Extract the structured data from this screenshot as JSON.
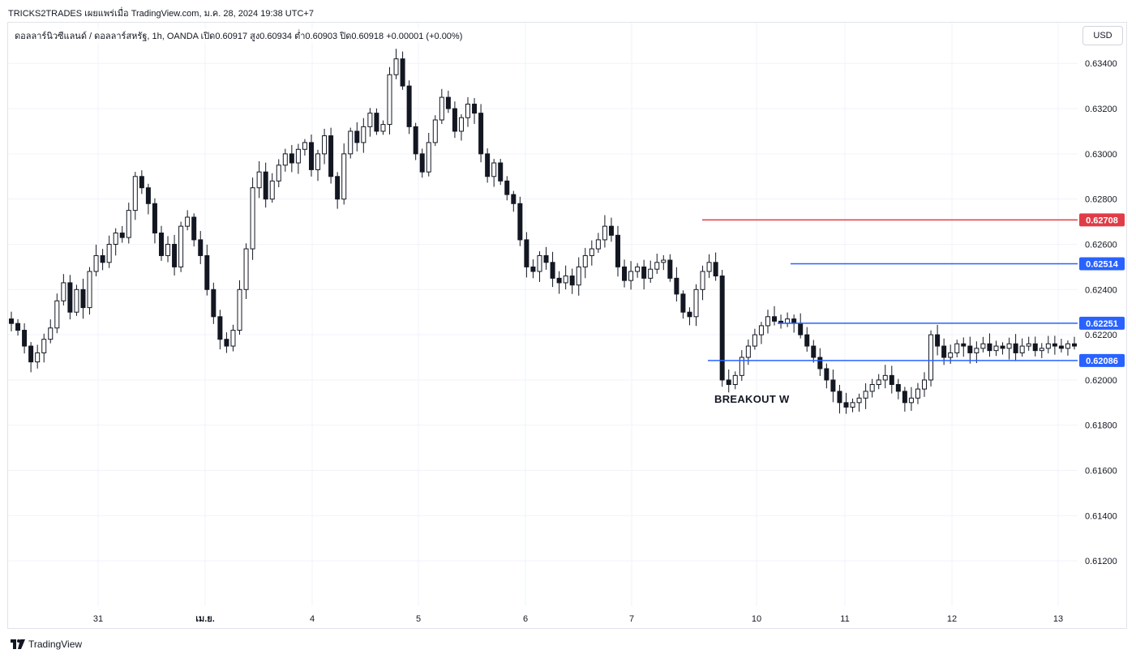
{
  "header": {
    "publish_line": "TRICKS2TRADES เผยแพร่เมื่อ TradingView.com, ม.ค. 28, 2024 19:38 UTC+7"
  },
  "legend": {
    "symbol": "ดอลลาร์นิวซีแลนด์ / ดอลลาร์สหรัฐ, 1h, OANDA",
    "open": "เปิด0.60917",
    "high": "สูง0.60934",
    "low": "ต่ำ0.60903",
    "close": "ปิด0.60918",
    "change": "+0.00001 (+0.00%)"
  },
  "currency_label": "USD",
  "annotation": "BREAKOUT W",
  "footer": {
    "brand": "TradingView",
    "logo_icon": "tradingview-logo-icon"
  },
  "colors": {
    "grid": "#f0f3fa",
    "candle": "#131722",
    "resistance_red": "#e03c47",
    "level_blue": "#2962ff",
    "axis_text": "#131722"
  },
  "chart_data": {
    "type": "candlestick",
    "ylim": [
      0.61,
      0.6358
    ],
    "yticks": [
      "0.61200",
      "0.61400",
      "0.61600",
      "0.61800",
      "0.62000",
      "0.62200",
      "0.62400",
      "0.62600",
      "0.62800",
      "0.63000",
      "0.63200",
      "0.63400"
    ],
    "xticks": [
      "31",
      "เม.ย.",
      "4",
      "5",
      "6",
      "7",
      "10",
      "11",
      "12",
      "13"
    ],
    "grid": true,
    "levels": [
      {
        "price": 0.62708,
        "label": "0.62708",
        "color": "#e03c47"
      },
      {
        "price": 0.62514,
        "label": "0.62514",
        "color": "#2962ff"
      },
      {
        "price": 0.62251,
        "label": "0.62251",
        "color": "#2962ff"
      },
      {
        "price": 0.62086,
        "label": "0.62086",
        "color": "#2962ff"
      }
    ],
    "closes": [
      0.6225,
      0.6222,
      0.6215,
      0.6208,
      0.6212,
      0.6218,
      0.6223,
      0.6235,
      0.6243,
      0.623,
      0.624,
      0.6232,
      0.6248,
      0.6255,
      0.6252,
      0.626,
      0.6265,
      0.6263,
      0.6275,
      0.629,
      0.6285,
      0.6278,
      0.6265,
      0.6255,
      0.626,
      0.625,
      0.6268,
      0.6272,
      0.6262,
      0.6255,
      0.624,
      0.6228,
      0.6218,
      0.6215,
      0.6222,
      0.624,
      0.6258,
      0.6285,
      0.6292,
      0.628,
      0.6288,
      0.6295,
      0.63,
      0.6296,
      0.6302,
      0.6305,
      0.6293,
      0.63,
      0.6308,
      0.629,
      0.628,
      0.63,
      0.631,
      0.6305,
      0.6312,
      0.6318,
      0.631,
      0.6313,
      0.6335,
      0.6342,
      0.633,
      0.6312,
      0.63,
      0.6292,
      0.6305,
      0.6315,
      0.6325,
      0.632,
      0.631,
      0.6316,
      0.6322,
      0.6318,
      0.63,
      0.629,
      0.6296,
      0.6288,
      0.6282,
      0.6278,
      0.6262,
      0.625,
      0.6248,
      0.6255,
      0.6252,
      0.6245,
      0.6243,
      0.6246,
      0.6242,
      0.625,
      0.6255,
      0.6258,
      0.6262,
      0.6268,
      0.6264,
      0.625,
      0.6244,
      0.6248,
      0.625,
      0.6245,
      0.6249,
      0.6252,
      0.6253,
      0.6245,
      0.6238,
      0.623,
      0.6228,
      0.624,
      0.6248,
      0.6252,
      0.6246,
      0.62,
      0.6198,
      0.6202,
      0.621,
      0.6215,
      0.622,
      0.6224,
      0.6228,
      0.6226,
      0.6225,
      0.6227,
      0.6225,
      0.622,
      0.6215,
      0.621,
      0.6205,
      0.62,
      0.6195,
      0.619,
      0.6188,
      0.619,
      0.6192,
      0.6195,
      0.6198,
      0.62,
      0.6202,
      0.6198,
      0.6195,
      0.619,
      0.6192,
      0.6196,
      0.62,
      0.622,
      0.6215,
      0.621,
      0.6212,
      0.6216,
      0.6215,
      0.6212,
      0.6214,
      0.6216,
      0.6213,
      0.6215,
      0.6214,
      0.6216,
      0.6212,
      0.6215,
      0.6216,
      0.6213,
      0.6214,
      0.6216,
      0.6215,
      0.6214,
      0.6216,
      0.6215
    ]
  }
}
